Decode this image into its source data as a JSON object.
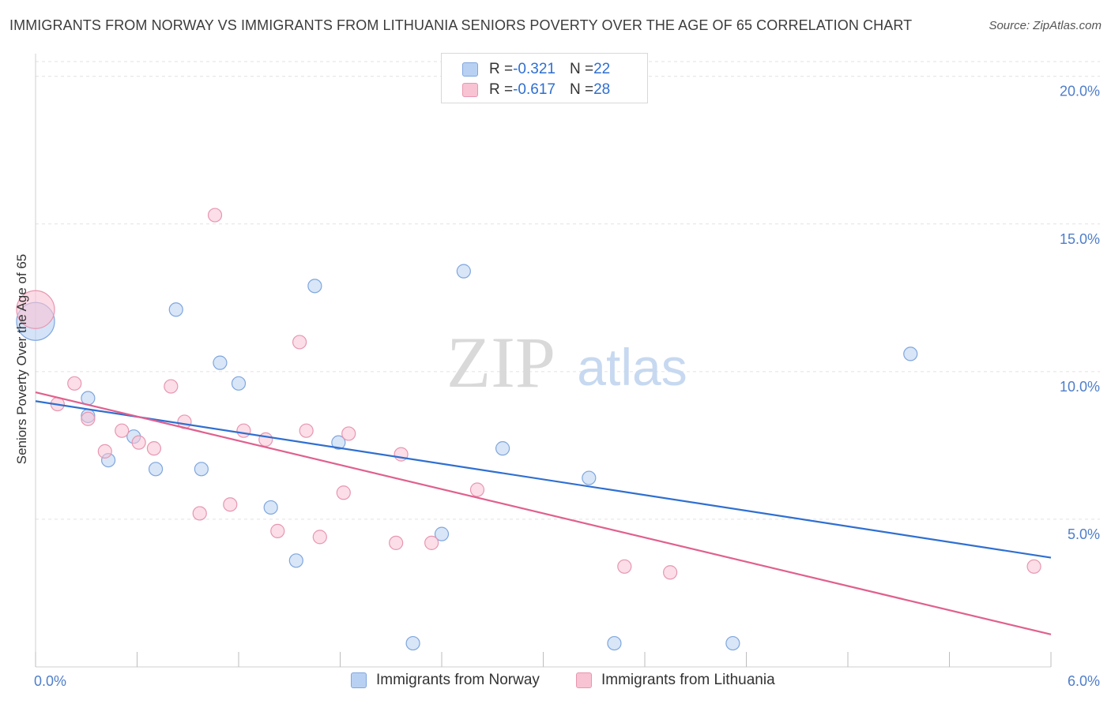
{
  "title": "IMMIGRANTS FROM NORWAY VS IMMIGRANTS FROM LITHUANIA SENIORS POVERTY OVER THE AGE OF 65 CORRELATION CHART",
  "source": "Source: ZipAtlas.com",
  "watermark": {
    "zip": "ZIP",
    "atlas": "atlas"
  },
  "legend": {
    "rows": [
      {
        "r_label": "R = ",
        "r_value": "-0.321",
        "n_label": "N = ",
        "n_value": "22"
      },
      {
        "r_label": "R = ",
        "r_value": "-0.617",
        "n_label": "N = ",
        "n_value": "28"
      }
    ]
  },
  "colors": {
    "norway_fill": "#b8d1f3",
    "norway_stroke": "#7fa6dd",
    "norway_line": "#2f6fd0",
    "lithuania_fill": "#f8c3d3",
    "lithuania_stroke": "#e896b0",
    "lithuania_line": "#e0608e",
    "grid": "#e2e2e2",
    "tick": "#4f7ec9"
  },
  "chart_data": {
    "type": "scatter",
    "title": "IMMIGRANTS FROM NORWAY VS IMMIGRANTS FROM LITHUANIA SENIORS POVERTY OVER THE AGE OF 65 CORRELATION CHART",
    "xlabel": "",
    "ylabel": "Seniors Poverty Over the Age of 65",
    "xlim": [
      0,
      6
    ],
    "ylim": [
      0,
      20.5
    ],
    "x_tick_labels": [
      {
        "value": 0,
        "label": "0.0%"
      },
      {
        "value": 6,
        "label": "6.0%"
      }
    ],
    "y_tick_labels": [
      {
        "value": 5,
        "label": "5.0%"
      },
      {
        "value": 10,
        "label": "10.0%"
      },
      {
        "value": 15,
        "label": "15.0%"
      },
      {
        "value": 20,
        "label": "20.0%"
      }
    ],
    "series": [
      {
        "name": "Immigrants from Norway",
        "points": [
          {
            "x": 0.0,
            "y": 11.7,
            "big": true
          },
          {
            "x": 0.31,
            "y": 8.5
          },
          {
            "x": 0.31,
            "y": 9.1
          },
          {
            "x": 0.43,
            "y": 7.0
          },
          {
            "x": 0.58,
            "y": 7.8
          },
          {
            "x": 0.71,
            "y": 6.7
          },
          {
            "x": 0.83,
            "y": 12.1
          },
          {
            "x": 0.98,
            "y": 6.7
          },
          {
            "x": 1.09,
            "y": 10.3
          },
          {
            "x": 1.2,
            "y": 9.6
          },
          {
            "x": 1.39,
            "y": 5.4
          },
          {
            "x": 1.54,
            "y": 3.6
          },
          {
            "x": 1.65,
            "y": 12.9
          },
          {
            "x": 1.79,
            "y": 7.6
          },
          {
            "x": 2.23,
            "y": 0.8
          },
          {
            "x": 2.4,
            "y": 4.5
          },
          {
            "x": 2.53,
            "y": 13.4
          },
          {
            "x": 2.76,
            "y": 7.4
          },
          {
            "x": 3.27,
            "y": 6.4
          },
          {
            "x": 3.42,
            "y": 0.8
          },
          {
            "x": 4.12,
            "y": 0.8
          },
          {
            "x": 5.17,
            "y": 10.6
          }
        ],
        "trend": {
          "x": [
            0.0,
            6.0
          ],
          "y": [
            9.0,
            3.7
          ]
        }
      },
      {
        "name": "Immigrants from Lithuania",
        "points": [
          {
            "x": 0.0,
            "y": 12.1,
            "big": true
          },
          {
            "x": 0.13,
            "y": 8.9
          },
          {
            "x": 0.23,
            "y": 9.6
          },
          {
            "x": 0.31,
            "y": 8.4
          },
          {
            "x": 0.41,
            "y": 7.3
          },
          {
            "x": 0.51,
            "y": 8.0
          },
          {
            "x": 0.61,
            "y": 7.6
          },
          {
            "x": 0.7,
            "y": 7.4
          },
          {
            "x": 0.8,
            "y": 9.5
          },
          {
            "x": 0.88,
            "y": 8.3
          },
          {
            "x": 0.97,
            "y": 5.2
          },
          {
            "x": 1.06,
            "y": 15.3
          },
          {
            "x": 1.15,
            "y": 5.5
          },
          {
            "x": 1.23,
            "y": 8.0
          },
          {
            "x": 1.36,
            "y": 7.7
          },
          {
            "x": 1.43,
            "y": 4.6
          },
          {
            "x": 1.56,
            "y": 11.0
          },
          {
            "x": 1.6,
            "y": 8.0
          },
          {
            "x": 1.68,
            "y": 4.4
          },
          {
            "x": 1.82,
            "y": 5.9
          },
          {
            "x": 1.85,
            "y": 7.9
          },
          {
            "x": 2.13,
            "y": 4.2
          },
          {
            "x": 2.16,
            "y": 7.2
          },
          {
            "x": 2.34,
            "y": 4.2
          },
          {
            "x": 2.61,
            "y": 6.0
          },
          {
            "x": 3.48,
            "y": 3.4
          },
          {
            "x": 3.75,
            "y": 3.2
          },
          {
            "x": 5.9,
            "y": 3.4
          }
        ],
        "trend": {
          "x": [
            0.0,
            6.0
          ],
          "y": [
            9.3,
            1.1
          ]
        }
      }
    ],
    "legend_position": "top-center"
  }
}
